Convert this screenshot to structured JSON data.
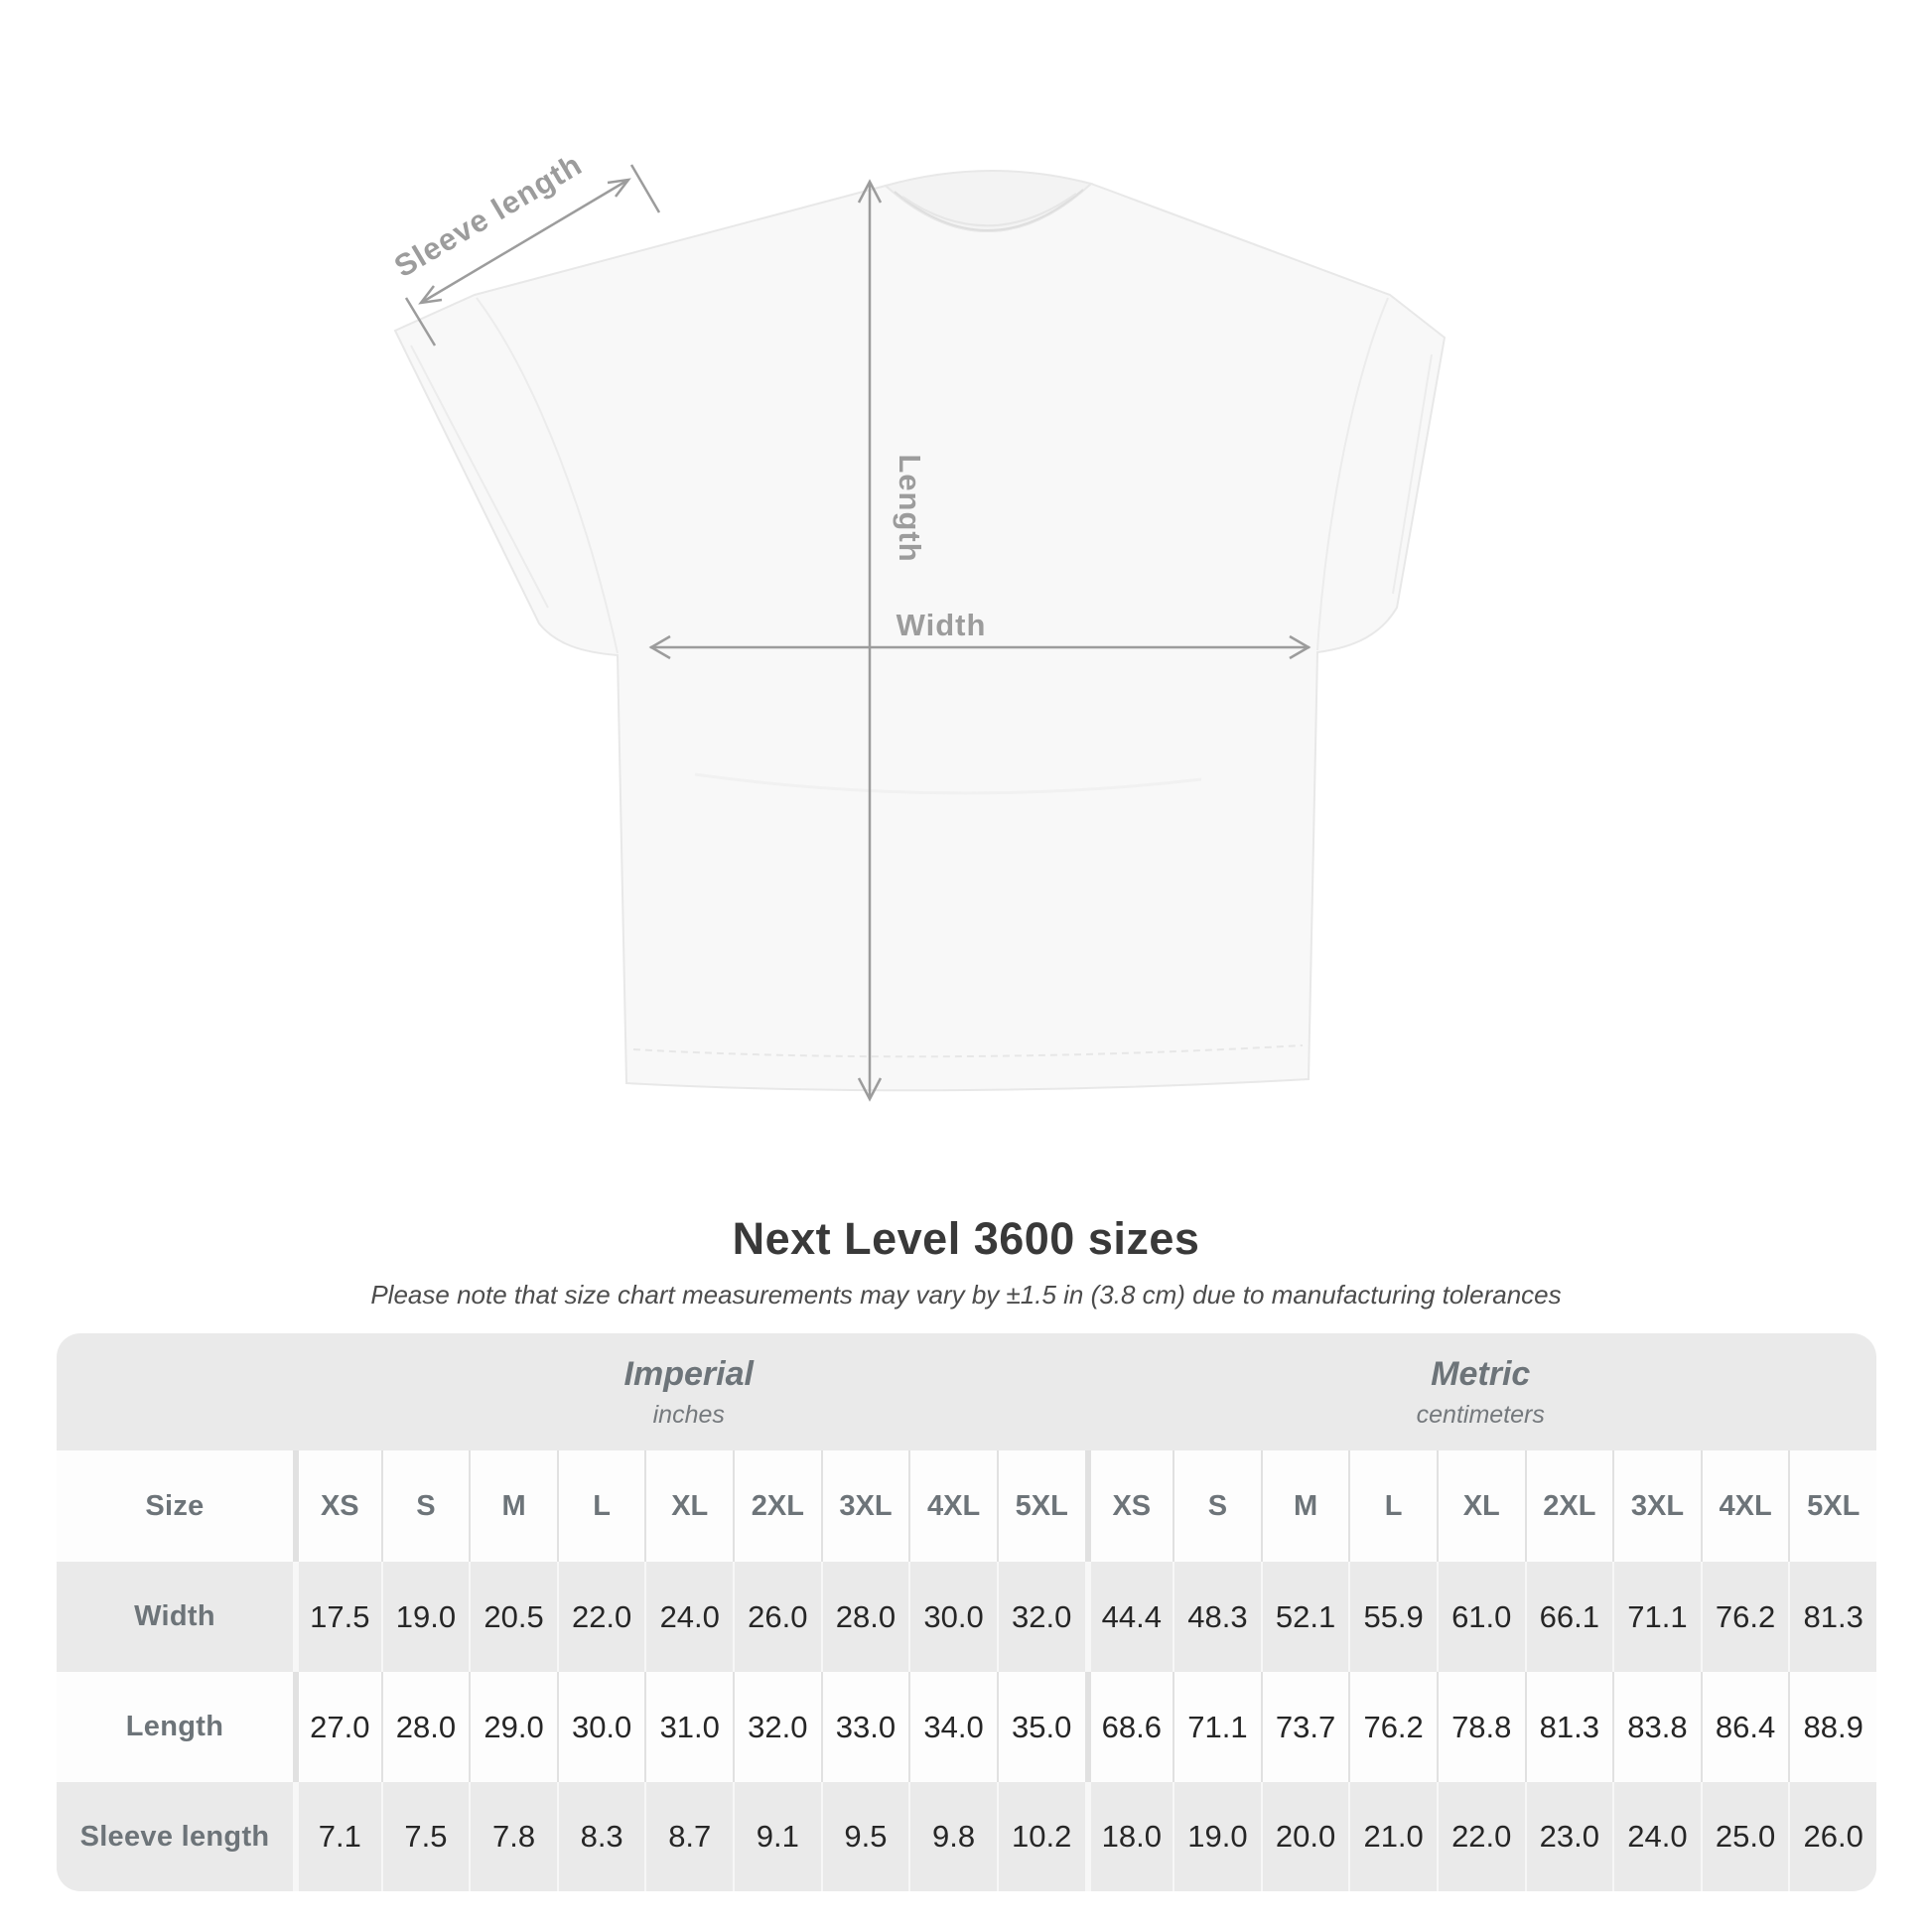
{
  "diagram": {
    "sleeve_length_label": "Sleeve length",
    "length_label": "Length",
    "width_label": "Width"
  },
  "heading": {
    "title": "Next Level 3600 sizes",
    "note": "Please note that size chart measurements may vary by ±1.5 in (3.8 cm) due to manufacturing tolerances"
  },
  "size_chart": {
    "corner_label": "Size",
    "groups": [
      {
        "name": "Imperial",
        "unit": "inches"
      },
      {
        "name": "Metric",
        "unit": "centimeters"
      }
    ],
    "sizes": [
      "XS",
      "S",
      "M",
      "L",
      "XL",
      "2XL",
      "3XL",
      "4XL",
      "5XL"
    ],
    "rows": [
      {
        "label": "Width",
        "imperial": [
          "17.5",
          "19.0",
          "20.5",
          "22.0",
          "24.0",
          "26.0",
          "28.0",
          "30.0",
          "32.0"
        ],
        "metric": [
          "44.4",
          "48.3",
          "52.1",
          "55.9",
          "61.0",
          "66.1",
          "71.1",
          "76.2",
          "81.3"
        ]
      },
      {
        "label": "Length",
        "imperial": [
          "27.0",
          "28.0",
          "29.0",
          "30.0",
          "31.0",
          "32.0",
          "33.0",
          "34.0",
          "35.0"
        ],
        "metric": [
          "68.6",
          "71.1",
          "73.7",
          "76.2",
          "78.8",
          "81.3",
          "83.8",
          "86.4",
          "88.9"
        ]
      },
      {
        "label": "Sleeve length",
        "imperial": [
          "7.1",
          "7.5",
          "7.8",
          "8.3",
          "8.7",
          "9.1",
          "9.5",
          "9.8",
          "10.2"
        ],
        "metric": [
          "18.0",
          "19.0",
          "20.0",
          "21.0",
          "22.0",
          "23.0",
          "24.0",
          "25.0",
          "26.0"
        ]
      }
    ]
  },
  "colors": {
    "annotation": "#9c9c9c",
    "title_text": "#393939",
    "table_bg": "#eaeaea",
    "row_white": "#fdfdfd",
    "header_text": "#6d7479",
    "value_text": "#262626",
    "shirt_fill": "#f8f8f8",
    "shirt_edge": "#e8e8e8"
  }
}
